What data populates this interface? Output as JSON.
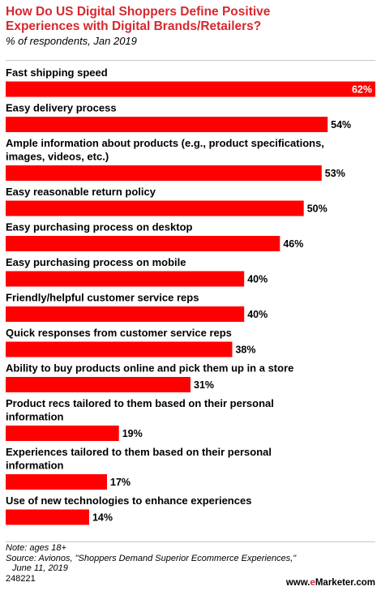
{
  "header": {
    "title_line1": "How Do US Digital Shoppers Define Positive",
    "title_line2": "Experiences with Digital Brands/Retailers?",
    "subtitle": "% of respondents, Jan 2019"
  },
  "footer": {
    "note": "Note: ages 18+",
    "source_line1": "Source: Avionos, \"Shoppers Demand Superior Ecommerce Experiences,\"",
    "source_line2": "June 11, 2019",
    "code": "248221",
    "brand_prefix": "www.",
    "brand_accent": "e",
    "brand_suffix": "Marketer.com"
  },
  "colors": {
    "bar": "#ff0000",
    "title": "#d6292e",
    "label_on_bar": "#ffffff",
    "label_outside": "#000000"
  },
  "chart_data": {
    "type": "bar",
    "orientation": "horizontal",
    "title": "How Do US Digital Shoppers Define Positive Experiences with Digital Brands/Retailers?",
    "subtitle": "% of respondents, Jan 2019",
    "xlim": [
      0,
      62
    ],
    "grid": false,
    "categories": [
      [
        "Fast shipping speed"
      ],
      [
        "Easy delivery process"
      ],
      [
        "Ample information about products (e.g., product specifications,",
        "images, videos, etc.)"
      ],
      [
        "Easy reasonable return policy"
      ],
      [
        "Easy purchasing process on desktop"
      ],
      [
        "Easy purchasing process on mobile"
      ],
      [
        "Friendly/helpful customer service reps"
      ],
      [
        "Quick responses from customer service reps"
      ],
      [
        "Ability to buy products online and pick them up in a store"
      ],
      [
        "Product recs tailored to them based on their personal",
        "information"
      ],
      [
        "Experiences tailored to them based on their personal",
        "information"
      ],
      [
        "Use of new technologies to enhance experiences"
      ]
    ],
    "values": [
      62,
      54,
      53,
      50,
      46,
      40,
      40,
      38,
      31,
      19,
      17,
      14
    ],
    "value_labels": [
      "62%",
      "54%",
      "53%",
      "50%",
      "46%",
      "40%",
      "40%",
      "38%",
      "31%",
      "19%",
      "17%",
      "14%"
    ]
  }
}
